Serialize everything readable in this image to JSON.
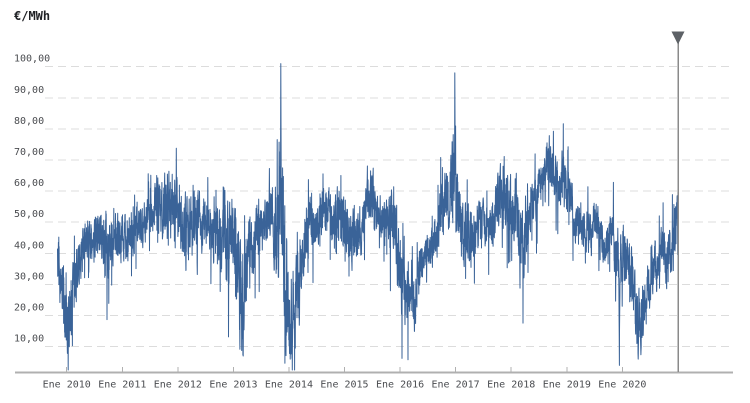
{
  "colors": {
    "line": "#3a6398",
    "grid": "#dcdcdc",
    "axis": "#b0b0b0",
    "label": "#4a4c50",
    "title": "#202226",
    "cursor": "#8a8a8a",
    "cursor_handle": "#5d6166"
  },
  "chart_data": {
    "type": "line",
    "title": "€/MWh",
    "resolution_estimate": "daily",
    "x_range": [
      "Ene 2010",
      "Ene 2021"
    ],
    "ylim": [
      0,
      105
    ],
    "grid": "dashed-horizontal",
    "x_axis": {
      "tick_labels": [
        "Ene 2010",
        "Ene 2011",
        "Ene 2012",
        "Ene 2013",
        "Ene 2014",
        "Ene 2015",
        "Ene 2016",
        "Ene 2017",
        "Ene 2018",
        "Ene 2019",
        "Ene 2020"
      ]
    },
    "y_axis": {
      "unit": "€/MWh",
      "tick_labels": [
        "100,00",
        "90,00",
        "80,00",
        "70,00",
        "60,00",
        "50,00",
        "40,00",
        "30,00",
        "20,00",
        "10,00"
      ],
      "tick_values": [
        100,
        90,
        80,
        70,
        60,
        50,
        40,
        30,
        20,
        10
      ]
    },
    "cursor": {
      "position": "Ene 2021",
      "style": "vertical-line-with-triangle-handle"
    },
    "series": [
      {
        "color": "#3a6398",
        "monthly_start": "Ene 2010",
        "monthly_mean": [
          36,
          25,
          22,
          30,
          38,
          42,
          45,
          45,
          46,
          42,
          41,
          45,
          45,
          47,
          46,
          44,
          47,
          49,
          50,
          52,
          54,
          56,
          54,
          54,
          54,
          57,
          50,
          46,
          47,
          52,
          51,
          50,
          49,
          46,
          44,
          44,
          45,
          48,
          30,
          22,
          40,
          41,
          48,
          48,
          50,
          52,
          45,
          62,
          34,
          18,
          27,
          28,
          43,
          50,
          48,
          50,
          57,
          55,
          48,
          48,
          52,
          44,
          44,
          46,
          46,
          55,
          61,
          56,
          52,
          50,
          51,
          53,
          37,
          28,
          28,
          25,
          26,
          39,
          41,
          42,
          44,
          53,
          56,
          60,
          72,
          52,
          44,
          45,
          47,
          50,
          49,
          47,
          49,
          57,
          59,
          58,
          50,
          55,
          40,
          43,
          55,
          58,
          62,
          64,
          71,
          66,
          62,
          62,
          62,
          54,
          49,
          50,
          48,
          47,
          52,
          45,
          42,
          47,
          42,
          34,
          41,
          36,
          28,
          18,
          21,
          30,
          34,
          36,
          42,
          37,
          42,
          46
        ],
        "monthly_range": [
          6,
          10,
          10,
          8,
          6,
          6,
          5,
          5,
          6,
          8,
          9,
          7,
          6,
          7,
          7,
          7,
          6,
          6,
          6,
          6,
          7,
          8,
          9,
          9,
          8,
          9,
          9,
          11,
          7,
          7,
          7,
          6,
          6,
          8,
          9,
          9,
          12,
          10,
          15,
          13,
          10,
          8,
          6,
          6,
          6,
          7,
          12,
          24,
          18,
          11,
          12,
          10,
          7,
          7,
          6,
          6,
          7,
          7,
          8,
          9,
          9,
          8,
          7,
          6,
          6,
          7,
          9,
          6,
          6,
          6,
          7,
          9,
          10,
          9,
          8,
          9,
          8,
          6,
          5,
          5,
          6,
          7,
          7,
          8,
          18,
          9,
          8,
          9,
          7,
          7,
          6,
          6,
          6,
          7,
          7,
          9,
          10,
          9,
          12,
          8,
          6,
          6,
          5,
          5,
          6,
          7,
          7,
          8,
          6,
          6,
          6,
          6,
          6,
          6,
          5,
          5,
          5,
          6,
          7,
          8,
          8,
          8,
          8,
          9,
          8,
          7,
          6,
          6,
          6,
          7,
          7,
          10
        ],
        "extremes": [
          {
            "label": "Mar 2010 low",
            "month_index": 2,
            "value": 10
          },
          {
            "label": "Abr 2013 low",
            "month_index": 39,
            "value": 7
          },
          {
            "label": "Dic 2013 spike",
            "month_index": 47,
            "value": 101
          },
          {
            "label": "Feb 2014 low",
            "month_index": 49,
            "value": 6
          },
          {
            "label": "Ene 2017 spike",
            "month_index": 84,
            "value": 98
          },
          {
            "label": "Dic 2019 low",
            "month_index": 119,
            "value": 4
          },
          {
            "label": "Abr 2020 low",
            "month_index": 123,
            "value": 6
          },
          {
            "label": "Dic 2020 end spike",
            "month_index": 131.9,
            "value": 61
          }
        ]
      }
    ]
  }
}
